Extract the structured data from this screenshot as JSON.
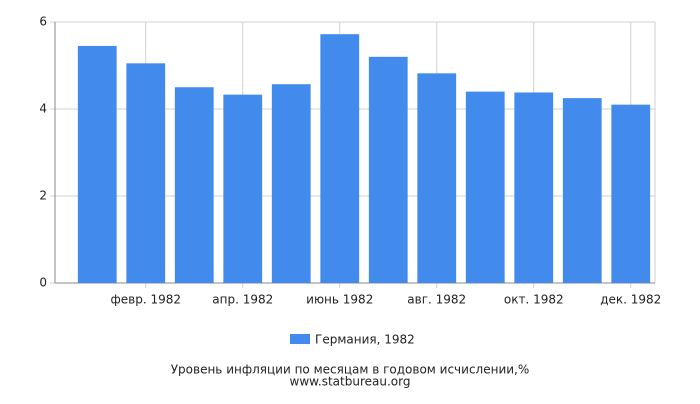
{
  "chart_data": {
    "type": "bar",
    "title": "Уровень инфляции по месяцам в годовом исчислении,%",
    "subtitle": "www.statbureau.org",
    "categories": [
      null,
      "февр. 1982",
      null,
      "апр. 1982",
      null,
      "июнь 1982",
      null,
      "авг. 1982",
      null,
      "окт. 1982",
      null,
      "дек. 1982"
    ],
    "series": [
      {
        "name": "Германия, 1982",
        "color": "#428bed",
        "values": [
          5.45,
          5.05,
          4.5,
          4.33,
          4.57,
          5.72,
          5.2,
          4.82,
          4.4,
          4.38,
          4.25,
          4.1
        ]
      }
    ],
    "ylim": [
      0,
      6
    ],
    "yticks": [
      0,
      2,
      4,
      6
    ],
    "grid": true
  }
}
